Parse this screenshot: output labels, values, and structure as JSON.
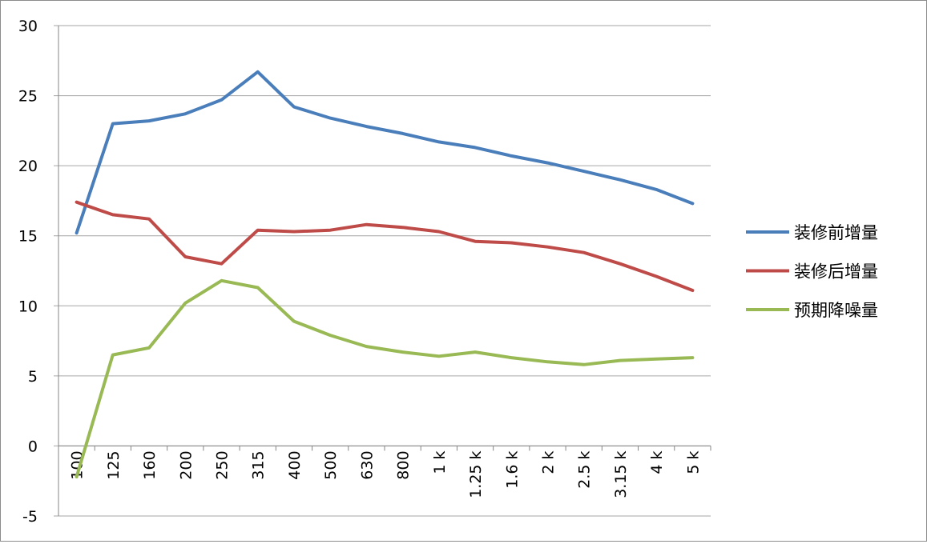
{
  "chart_data": {
    "type": "line",
    "title": "",
    "xlabel": "",
    "ylabel": "",
    "categories": [
      "100",
      "125",
      "160",
      "200",
      "250",
      "315",
      "400",
      "500",
      "630",
      "800",
      "1 k",
      "1.25 k",
      "1.6 k",
      "2 k",
      "2.5 k",
      "3.15 k",
      "4 k",
      "5 k"
    ],
    "ylim": [
      -5,
      30
    ],
    "yticks": [
      -5,
      0,
      5,
      10,
      15,
      20,
      25,
      30
    ],
    "grid": true,
    "legend_position": "right",
    "series": [
      {
        "name": "装修前增量",
        "color": "#4a7ebb",
        "values": [
          15.2,
          23.0,
          23.2,
          23.7,
          24.7,
          26.7,
          24.2,
          23.4,
          22.8,
          22.3,
          21.7,
          21.3,
          20.7,
          20.2,
          19.6,
          19.0,
          18.3,
          17.3
        ]
      },
      {
        "name": "装修后增量",
        "color": "#be4b48",
        "values": [
          17.4,
          16.5,
          16.2,
          13.5,
          13.0,
          15.4,
          15.3,
          15.4,
          15.8,
          15.6,
          15.3,
          14.6,
          14.5,
          14.2,
          13.8,
          13.0,
          12.1,
          11.1
        ]
      },
      {
        "name": "预期降噪量",
        "color": "#98b954",
        "values": [
          -2.2,
          6.5,
          7.0,
          10.2,
          11.8,
          11.3,
          8.9,
          7.9,
          7.1,
          6.7,
          6.4,
          6.7,
          6.3,
          6.0,
          5.8,
          6.1,
          6.2,
          6.3
        ]
      }
    ]
  }
}
